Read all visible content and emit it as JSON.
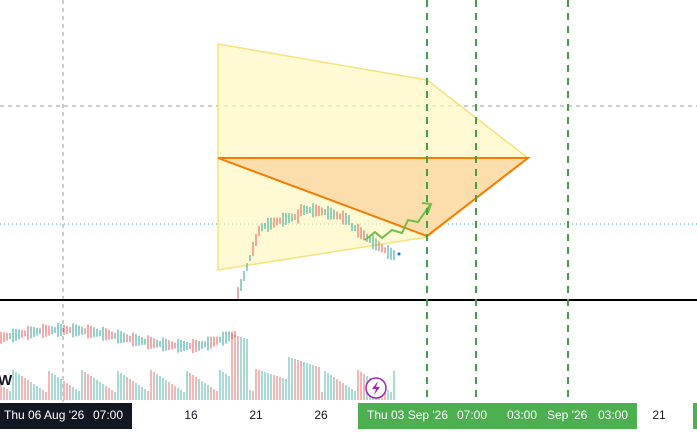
{
  "watermark": "W",
  "time_axis": {
    "crosshair_label": {
      "date": "Thu 06 Aug '26",
      "time": "07:00"
    },
    "ticks": [
      "16",
      "21",
      "26"
    ],
    "selection": [
      "Thu 03 Sep '26",
      "07:00",
      "03:00",
      "Sep '26",
      "03:00"
    ],
    "after": [
      "21"
    ]
  }
}
